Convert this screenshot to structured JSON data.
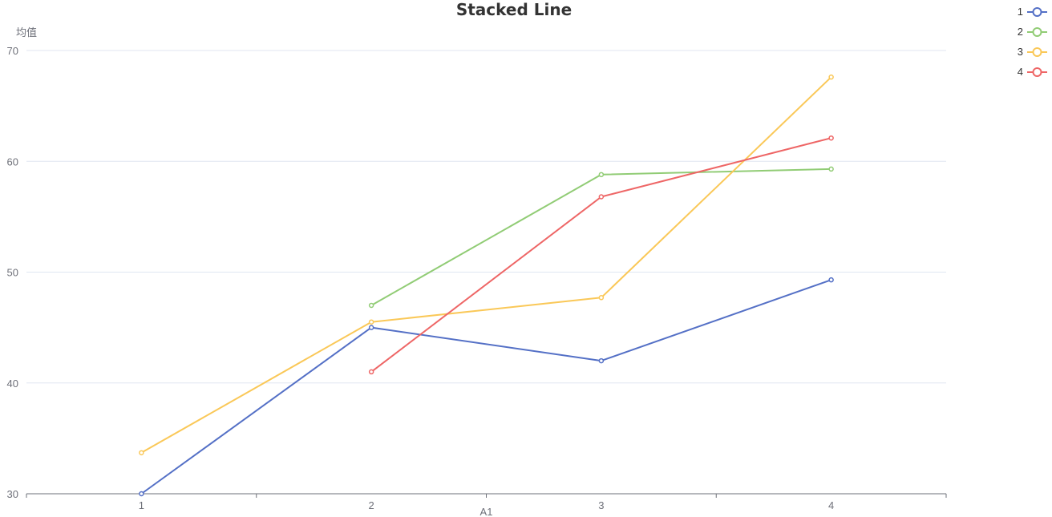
{
  "chart_data": {
    "type": "line",
    "title": "Stacked Line",
    "xlabel": "A1",
    "ylabel": "均值",
    "categories": [
      "1",
      "2",
      "3",
      "4"
    ],
    "ylim": [
      30,
      70
    ],
    "yticks": [
      30,
      40,
      50,
      60,
      70
    ],
    "grid": true,
    "legend_position": "top-right",
    "series": [
      {
        "name": "1",
        "color": "#5470c6",
        "values": [
          30.0,
          45.0,
          42.0,
          49.3
        ]
      },
      {
        "name": "2",
        "color": "#91cc75",
        "values": [
          null,
          47.0,
          58.8,
          59.3
        ]
      },
      {
        "name": "3",
        "color": "#fac858",
        "values": [
          33.7,
          45.5,
          47.7,
          67.6
        ]
      },
      {
        "name": "4",
        "color": "#ee6666",
        "values": [
          null,
          41.0,
          56.8,
          62.1
        ]
      }
    ]
  }
}
